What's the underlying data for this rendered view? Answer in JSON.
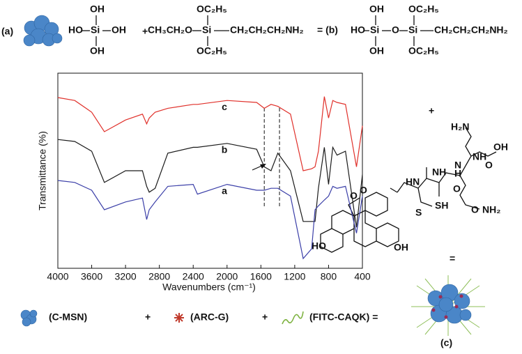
{
  "top_scheme": [
    "(a)",
    "OH",
    "HO",
    "Si",
    "OH",
    "OH",
    "+",
    "OC₂H₅",
    "CH₃CH₂O",
    "Si",
    "CH₂CH₂CH₂NH₂",
    "OC₂H₅",
    "= (b)",
    "OH",
    "HO",
    "Si",
    "O",
    "Si",
    "CH₂CH₂CH₂NH₂",
    "OH",
    "OC₂H₅",
    "OC₂H₅"
  ],
  "peptide_scheme": [
    "+",
    "H₂N",
    "OH",
    "NH",
    "O",
    "N",
    "H",
    "O",
    "O",
    "NH₂",
    "HN",
    "NH",
    "S",
    "SH",
    "O",
    "O",
    "HO",
    "OH",
    "="
  ],
  "bottom_scheme": [
    "(C-MSN)",
    "+",
    "(ARC-G)",
    "+",
    "(FITC-CAQK) =",
    "(c)"
  ],
  "chart_data": {
    "type": "line",
    "x_label": "Wavenumbers (cm⁻¹)",
    "y_label": "Transmittance (%)",
    "xlim": [
      4000,
      400
    ],
    "ylim": [
      0,
      100
    ],
    "xticks": [
      4000,
      3600,
      3200,
      2800,
      2400,
      2000,
      1600,
      1200,
      800,
      400
    ],
    "reference_lines": [
      1560,
      1380
    ],
    "x": [
      4000,
      3800,
      3600,
      3450,
      3200,
      3000,
      2950,
      2920,
      2850,
      2700,
      2400,
      2350,
      2000,
      1650,
      1560,
      1480,
      1400,
      1250,
      1100,
      1000,
      960,
      920,
      850,
      800,
      750,
      700,
      600,
      470,
      400
    ],
    "series": [
      {
        "name": "c",
        "color": "#e0302a",
        "values": [
          87.5,
          86,
          80,
          70,
          76,
          79,
          74,
          77,
          80,
          82,
          84,
          84,
          86,
          85,
          82,
          84,
          83,
          79,
          50,
          51,
          52,
          60,
          88,
          77,
          86,
          85,
          84,
          52,
          73
        ]
      },
      {
        "name": "b",
        "color": "#1a1a1a",
        "values": [
          66,
          65,
          60,
          44,
          50,
          50,
          42,
          39,
          41,
          59,
          62,
          62,
          64,
          61,
          52,
          50,
          59,
          50,
          24,
          24,
          24,
          41,
          62,
          43,
          62,
          58,
          60,
          21,
          48
        ]
      },
      {
        "name": "a",
        "color": "#3b3fa8",
        "values": [
          45,
          44,
          40,
          30,
          34,
          36,
          25,
          30,
          34,
          42,
          43,
          38,
          43,
          40,
          40,
          41,
          41,
          37,
          5,
          10,
          30,
          32,
          35,
          37,
          42,
          41,
          42,
          18,
          37
        ]
      }
    ]
  }
}
